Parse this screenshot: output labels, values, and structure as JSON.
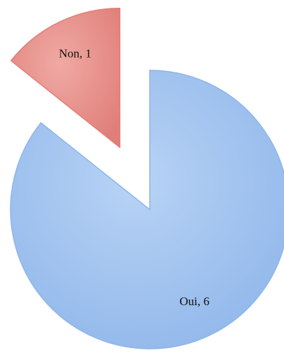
{
  "chart_data": {
    "type": "pie",
    "values": [
      6,
      1
    ],
    "value_labels": [
      "Oui, 6",
      "Non, 1"
    ],
    "colors": [
      "#8fb6ea",
      "#e07e78"
    ],
    "exploded": [
      false,
      true
    ]
  }
}
